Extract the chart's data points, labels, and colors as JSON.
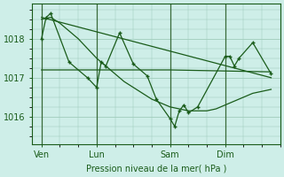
{
  "bg_color": "#ceeee8",
  "grid_color": "#a0ccbb",
  "line_color": "#1a5c1a",
  "marker_color": "#1a5c1a",
  "xlabel": "Pression niveau de la mer( hPa )",
  "xlabel_color": "#1a5c1a",
  "tick_color": "#1a5c1a",
  "axis_color": "#1a5c1a",
  "yticks": [
    1016,
    1017,
    1018
  ],
  "ylim": [
    1015.3,
    1018.9
  ],
  "xtick_labels": [
    "Ven",
    "Lun",
    "Sam",
    "Dim"
  ],
  "xtick_positions": [
    2,
    14,
    30,
    42
  ],
  "xlim": [
    0,
    54
  ],
  "vline_positions": [
    2,
    14,
    30,
    42
  ],
  "main_x": [
    2,
    3,
    4,
    8,
    12,
    14,
    15,
    16,
    19,
    22,
    25,
    27,
    30,
    31,
    32,
    33,
    34,
    36,
    42,
    43,
    44,
    45,
    48,
    52
  ],
  "main_y": [
    1018.0,
    1018.55,
    1018.65,
    1017.4,
    1017.0,
    1016.75,
    1017.4,
    1017.3,
    1018.15,
    1017.35,
    1017.05,
    1016.45,
    1015.95,
    1015.75,
    1016.15,
    1016.3,
    1016.1,
    1016.25,
    1017.55,
    1017.55,
    1017.3,
    1017.5,
    1017.9,
    1017.1
  ],
  "smooth_x": [
    2,
    4,
    6,
    8,
    10,
    12,
    14,
    16,
    18,
    20,
    22,
    24,
    26,
    28,
    30,
    32,
    34,
    36,
    38,
    40,
    42,
    44,
    46,
    48,
    50,
    52
  ],
  "smooth_y": [
    1018.5,
    1018.55,
    1018.4,
    1018.2,
    1018.0,
    1017.75,
    1017.5,
    1017.3,
    1017.1,
    1016.9,
    1016.75,
    1016.6,
    1016.45,
    1016.35,
    1016.25,
    1016.2,
    1016.15,
    1016.15,
    1016.15,
    1016.2,
    1016.3,
    1016.4,
    1016.5,
    1016.6,
    1016.65,
    1016.7
  ],
  "flat_x": [
    2,
    8,
    14,
    19,
    30,
    52
  ],
  "flat_y": [
    1017.2,
    1017.2,
    1017.2,
    1017.2,
    1017.2,
    1017.15
  ],
  "trend_x": [
    2,
    52
  ],
  "trend_y": [
    1018.55,
    1017.0
  ]
}
